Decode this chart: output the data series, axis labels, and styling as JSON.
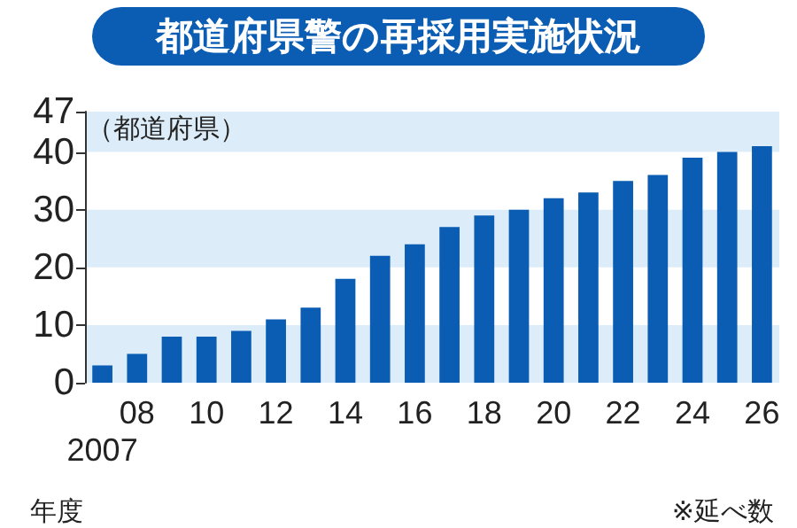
{
  "chart_data": {
    "type": "bar",
    "title": "都道府県警の再採用実施状況",
    "xlabel": "年度",
    "ylabel": "（都道府県）",
    "annotations": [
      "※延べ数"
    ],
    "categories": [
      "2007",
      "08",
      null,
      "10",
      null,
      "12",
      null,
      "14",
      null,
      "16",
      null,
      "18",
      null,
      "20",
      null,
      "22",
      null,
      "24",
      null,
      "26"
    ],
    "values": [
      3,
      5,
      8,
      8,
      9,
      11,
      13,
      18,
      22,
      24,
      27,
      29,
      30,
      32,
      33,
      35,
      36,
      39,
      40,
      41
    ],
    "color": "#0b5db3",
    "ylim": [
      0,
      47
    ],
    "yticks": [
      0,
      10,
      20,
      30,
      40,
      47
    ],
    "bands": [
      {
        "axis": "y",
        "from": 0,
        "to": 10,
        "color": "#dcedf9"
      },
      {
        "axis": "y",
        "from": 20,
        "to": 30,
        "color": "#dcedf9"
      },
      {
        "axis": "y",
        "from": 40,
        "to": 47,
        "color": "#dcedf9"
      }
    ]
  }
}
